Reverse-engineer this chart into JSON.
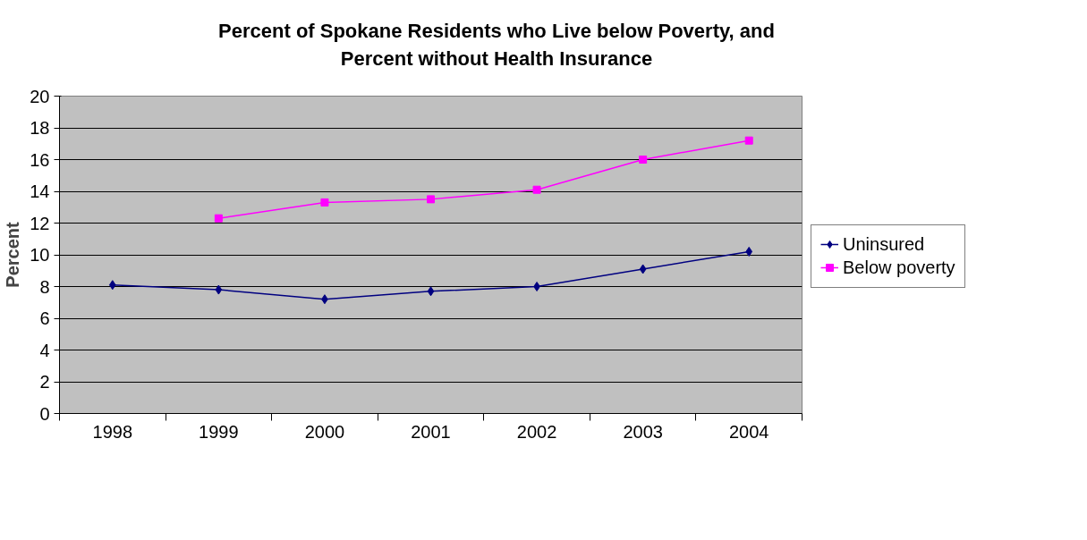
{
  "chart_data": {
    "type": "line",
    "title": "Percent of Spokane Residents who Live below Poverty, and\nPercent without Health Insurance",
    "ylabel": "Percent",
    "categories": [
      "1998",
      "1999",
      "2000",
      "2001",
      "2002",
      "2003",
      "2004"
    ],
    "series": [
      {
        "name": "Uninsured",
        "color": "#000080",
        "marker": "diamond",
        "values": [
          8.1,
          7.8,
          7.2,
          7.7,
          8.0,
          9.1,
          10.2
        ]
      },
      {
        "name": "Below poverty",
        "color": "#ff00ff",
        "marker": "square",
        "values": [
          null,
          12.3,
          13.3,
          13.5,
          14.1,
          16.0,
          17.2
        ]
      }
    ],
    "ylim": [
      0,
      20
    ],
    "yticks": [
      0,
      2,
      4,
      6,
      8,
      10,
      12,
      14,
      16,
      18,
      20
    ],
    "grid": "y",
    "legend": "right"
  }
}
